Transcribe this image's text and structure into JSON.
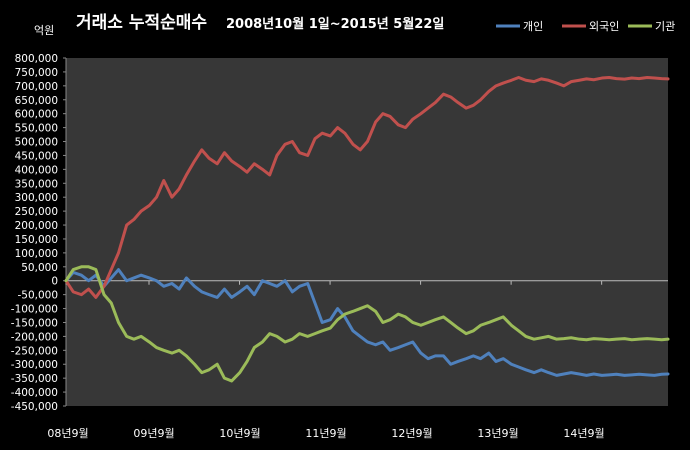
{
  "chart_data": {
    "type": "line",
    "title": "거래소 누적순매수",
    "subtitle": "2008년10월 1일~2015년 5월22일",
    "ylabel": "억원",
    "xlabel": "",
    "ylim": [
      -450000,
      800000
    ],
    "yticks": [
      -450000,
      -400000,
      -350000,
      -300000,
      -250000,
      -200000,
      -150000,
      -100000,
      -50000,
      0,
      50000,
      100000,
      150000,
      200000,
      250000,
      300000,
      350000,
      400000,
      450000,
      500000,
      550000,
      600000,
      650000,
      700000,
      750000,
      800000
    ],
    "x_tick_labels": [
      "08년9월",
      "09년9월",
      "10년9월",
      "11년9월",
      "12년9월",
      "13년9월",
      "14년9월"
    ],
    "x_tick_positions": [
      2008.667,
      2009.667,
      2010.667,
      2011.667,
      2012.667,
      2013.667,
      2014.667
    ],
    "xlim": [
      2008.75,
      2015.4
    ],
    "grid": false,
    "legend": "top-right",
    "series": [
      {
        "name": "개인",
        "color": "#4f81bd",
        "x": [
          2008.75,
          2008.83,
          2008.92,
          2009.0,
          2009.08,
          2009.17,
          2009.25,
          2009.33,
          2009.42,
          2009.5,
          2009.58,
          2009.67,
          2009.75,
          2009.83,
          2009.92,
          2010.0,
          2010.08,
          2010.17,
          2010.25,
          2010.33,
          2010.42,
          2010.5,
          2010.58,
          2010.67,
          2010.75,
          2010.83,
          2010.92,
          2011.0,
          2011.08,
          2011.17,
          2011.25,
          2011.33,
          2011.42,
          2011.5,
          2011.58,
          2011.67,
          2011.75,
          2011.83,
          2011.92,
          2012.0,
          2012.08,
          2012.17,
          2012.25,
          2012.33,
          2012.42,
          2012.5,
          2012.58,
          2012.67,
          2012.75,
          2012.83,
          2012.92,
          2013.0,
          2013.08,
          2013.17,
          2013.25,
          2013.33,
          2013.42,
          2013.5,
          2013.58,
          2013.67,
          2013.75,
          2013.83,
          2013.92,
          2014.0,
          2014.08,
          2014.17,
          2014.25,
          2014.33,
          2014.42,
          2014.5,
          2014.58,
          2014.67,
          2014.75,
          2014.83,
          2014.92,
          2015.0,
          2015.08,
          2015.17,
          2015.25,
          2015.33,
          2015.4
        ],
        "values": [
          0,
          30000,
          20000,
          0,
          20000,
          -20000,
          10000,
          40000,
          0,
          10000,
          20000,
          10000,
          0,
          -20000,
          -10000,
          -30000,
          10000,
          -20000,
          -40000,
          -50000,
          -60000,
          -30000,
          -60000,
          -40000,
          -20000,
          -50000,
          0,
          -10000,
          -20000,
          0,
          -40000,
          -20000,
          -10000,
          -80000,
          -150000,
          -140000,
          -100000,
          -130000,
          -180000,
          -200000,
          -220000,
          -230000,
          -220000,
          -250000,
          -240000,
          -230000,
          -220000,
          -260000,
          -280000,
          -270000,
          -270000,
          -300000,
          -290000,
          -280000,
          -270000,
          -280000,
          -260000,
          -290000,
          -280000,
          -300000,
          -310000,
          -320000,
          -330000,
          -320000,
          -330000,
          -340000,
          -335000,
          -330000,
          -335000,
          -340000,
          -335000,
          -340000,
          -338000,
          -336000,
          -340000,
          -338000,
          -336000,
          -338000,
          -340000,
          -336000,
          -335000
        ]
      },
      {
        "name": "외국인",
        "color": "#c0504d",
        "x": [
          2008.75,
          2008.83,
          2008.92,
          2009.0,
          2009.08,
          2009.17,
          2009.25,
          2009.33,
          2009.42,
          2009.5,
          2009.58,
          2009.67,
          2009.75,
          2009.83,
          2009.92,
          2010.0,
          2010.08,
          2010.17,
          2010.25,
          2010.33,
          2010.42,
          2010.5,
          2010.58,
          2010.67,
          2010.75,
          2010.83,
          2010.92,
          2011.0,
          2011.08,
          2011.17,
          2011.25,
          2011.33,
          2011.42,
          2011.5,
          2011.58,
          2011.67,
          2011.75,
          2011.83,
          2011.92,
          2012.0,
          2012.08,
          2012.17,
          2012.25,
          2012.33,
          2012.42,
          2012.5,
          2012.58,
          2012.67,
          2012.75,
          2012.83,
          2012.92,
          2013.0,
          2013.08,
          2013.17,
          2013.25,
          2013.33,
          2013.42,
          2013.5,
          2013.58,
          2013.67,
          2013.75,
          2013.83,
          2013.92,
          2014.0,
          2014.08,
          2014.17,
          2014.25,
          2014.33,
          2014.42,
          2014.5,
          2014.58,
          2014.67,
          2014.75,
          2014.83,
          2014.92,
          2015.0,
          2015.08,
          2015.17,
          2015.25,
          2015.33,
          2015.4
        ],
        "values": [
          0,
          -40000,
          -50000,
          -30000,
          -60000,
          -20000,
          40000,
          100000,
          200000,
          220000,
          250000,
          270000,
          300000,
          360000,
          300000,
          330000,
          380000,
          430000,
          470000,
          440000,
          420000,
          460000,
          430000,
          410000,
          390000,
          420000,
          400000,
          380000,
          450000,
          490000,
          500000,
          460000,
          450000,
          510000,
          530000,
          520000,
          550000,
          530000,
          490000,
          470000,
          500000,
          570000,
          600000,
          590000,
          560000,
          550000,
          580000,
          600000,
          620000,
          640000,
          670000,
          660000,
          640000,
          620000,
          630000,
          650000,
          680000,
          700000,
          710000,
          720000,
          730000,
          720000,
          715000,
          725000,
          720000,
          710000,
          700000,
          715000,
          720000,
          725000,
          722000,
          728000,
          730000,
          726000,
          724000,
          728000,
          726000,
          730000,
          728000,
          726000,
          725000
        ]
      },
      {
        "name": "기관",
        "color": "#9bbb59",
        "x": [
          2008.75,
          2008.83,
          2008.92,
          2009.0,
          2009.08,
          2009.17,
          2009.25,
          2009.33,
          2009.42,
          2009.5,
          2009.58,
          2009.67,
          2009.75,
          2009.83,
          2009.92,
          2010.0,
          2010.08,
          2010.17,
          2010.25,
          2010.33,
          2010.42,
          2010.5,
          2010.58,
          2010.67,
          2010.75,
          2010.83,
          2010.92,
          2011.0,
          2011.08,
          2011.17,
          2011.25,
          2011.33,
          2011.42,
          2011.5,
          2011.58,
          2011.67,
          2011.75,
          2011.83,
          2011.92,
          2012.0,
          2012.08,
          2012.17,
          2012.25,
          2012.33,
          2012.42,
          2012.5,
          2012.58,
          2012.67,
          2012.75,
          2012.83,
          2012.92,
          2013.0,
          2013.08,
          2013.17,
          2013.25,
          2013.33,
          2013.42,
          2013.5,
          2013.58,
          2013.67,
          2013.75,
          2013.83,
          2013.92,
          2014.0,
          2014.08,
          2014.17,
          2014.25,
          2014.33,
          2014.42,
          2014.5,
          2014.58,
          2014.67,
          2014.75,
          2014.83,
          2014.92,
          2015.0,
          2015.08,
          2015.17,
          2015.25,
          2015.33,
          2015.4
        ],
        "values": [
          0,
          40000,
          50000,
          50000,
          40000,
          -50000,
          -80000,
          -150000,
          -200000,
          -210000,
          -200000,
          -220000,
          -240000,
          -250000,
          -260000,
          -250000,
          -270000,
          -300000,
          -330000,
          -320000,
          -300000,
          -350000,
          -360000,
          -330000,
          -290000,
          -240000,
          -220000,
          -190000,
          -200000,
          -220000,
          -210000,
          -190000,
          -200000,
          -190000,
          -180000,
          -170000,
          -140000,
          -120000,
          -110000,
          -100000,
          -90000,
          -110000,
          -150000,
          -140000,
          -120000,
          -130000,
          -150000,
          -160000,
          -150000,
          -140000,
          -130000,
          -150000,
          -170000,
          -190000,
          -180000,
          -160000,
          -150000,
          -140000,
          -130000,
          -160000,
          -180000,
          -200000,
          -210000,
          -205000,
          -200000,
          -210000,
          -208000,
          -205000,
          -210000,
          -212000,
          -208000,
          -210000,
          -212000,
          -210000,
          -208000,
          -212000,
          -210000,
          -208000,
          -210000,
          -212000,
          -210000
        ]
      }
    ]
  }
}
